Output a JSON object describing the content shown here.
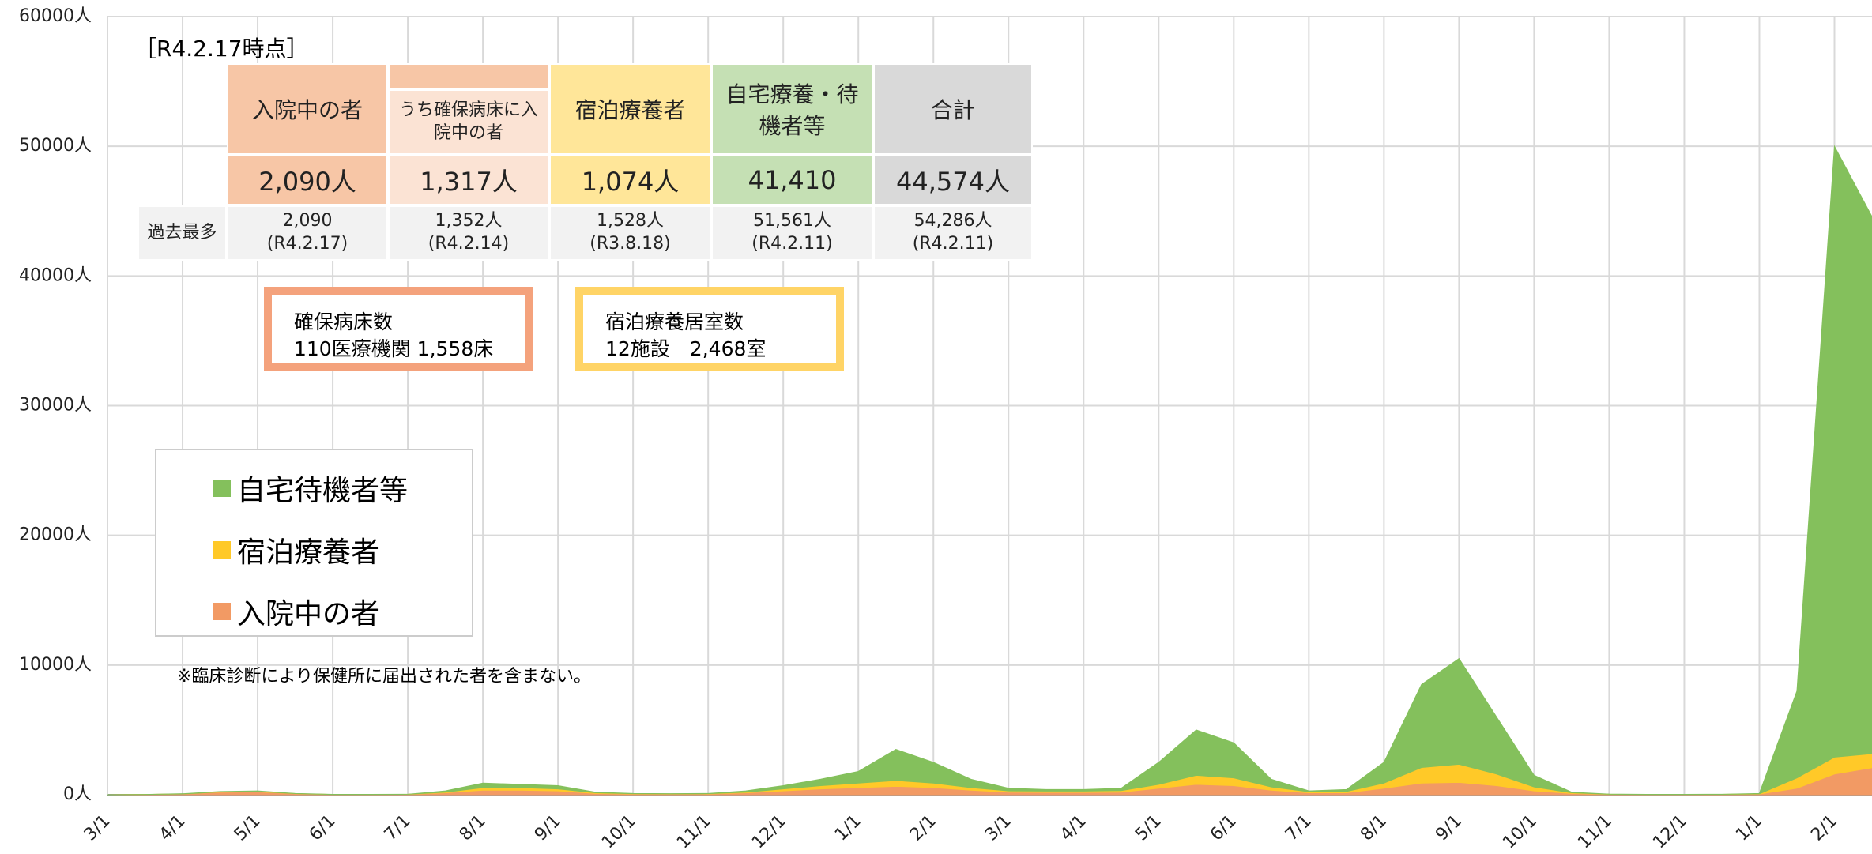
{
  "chart_data": {
    "type": "stacked_area",
    "categories": [
      "3/1",
      null,
      "4/1",
      null,
      "5/1",
      null,
      "6/1",
      null,
      "7/1",
      null,
      "8/1",
      null,
      "9/1",
      null,
      "10/1",
      null,
      "11/1",
      null,
      "12/1",
      null,
      "1/1",
      null,
      "2/1",
      null,
      "3/1",
      null,
      "4/1",
      null,
      "5/1",
      null,
      "6/1",
      null,
      "7/1",
      null,
      "8/1",
      null,
      "9/1",
      null,
      "10/1",
      null,
      "11/1",
      null,
      "12/1",
      null,
      "1/1",
      null,
      "2/1",
      null
    ],
    "series": [
      {
        "name": "入院中の者",
        "color": "#f29a64",
        "values": [
          0,
          20,
          60,
          200,
          220,
          80,
          25,
          25,
          30,
          150,
          350,
          350,
          300,
          100,
          60,
          50,
          60,
          150,
          300,
          450,
          550,
          650,
          550,
          350,
          200,
          180,
          180,
          200,
          500,
          800,
          700,
          350,
          150,
          150,
          500,
          900,
          950,
          700,
          300,
          100,
          30,
          20,
          20,
          20,
          50,
          500,
          1600,
          2090
        ]
      },
      {
        "name": "宿泊療養者",
        "color": "#ffc928",
        "values": [
          0,
          0,
          0,
          20,
          30,
          10,
          0,
          0,
          5,
          50,
          200,
          200,
          150,
          50,
          20,
          20,
          20,
          50,
          150,
          250,
          350,
          450,
          350,
          200,
          100,
          100,
          100,
          120,
          300,
          700,
          600,
          250,
          80,
          100,
          400,
          1200,
          1400,
          900,
          300,
          50,
          10,
          5,
          5,
          10,
          20,
          800,
          1300,
          1074
        ]
      },
      {
        "name": "自宅待機者等",
        "color": "#84c05c",
        "values": [
          0,
          0,
          20,
          30,
          50,
          10,
          5,
          5,
          5,
          100,
          350,
          250,
          250,
          50,
          20,
          10,
          20,
          100,
          250,
          500,
          900,
          2400,
          1600,
          650,
          200,
          120,
          120,
          180,
          1700,
          3500,
          2700,
          600,
          70,
          150,
          1600,
          6400,
          8150,
          4400,
          900,
          50,
          10,
          5,
          5,
          10,
          30,
          6700,
          47100,
          41410
        ]
      }
    ],
    "ylim": [
      0,
      60000
    ],
    "yticks": [
      {
        "value": 0,
        "label": "0人"
      },
      {
        "value": 10000,
        "label": "10000人"
      },
      {
        "value": 20000,
        "label": "20000人"
      },
      {
        "value": 30000,
        "label": "30000人"
      },
      {
        "value": 40000,
        "label": "40000人"
      },
      {
        "value": 50000,
        "label": "50000人"
      },
      {
        "value": 60000,
        "label": "60000人"
      }
    ],
    "grid": true,
    "annotations": {
      "note": "※臨床診断により保健所に届出された者を含まない。",
      "box1_title": "確保病床数",
      "box1_text": "110医療機関 1,558床",
      "box2_title": "宿泊療養居室数",
      "box2_text": "12施設　2,468室"
    }
  },
  "table": {
    "as_of": "［R4.2.17時点］",
    "max_label": "過去最多",
    "columns": [
      {
        "header": "入院中の者",
        "value": "2,090人",
        "max": "2,090",
        "max_date": "(R4.2.17)"
      },
      {
        "header": "うち確保病床に入院中の者",
        "value": "1,317人",
        "max": "1,352人",
        "max_date": "(R4.2.14)"
      },
      {
        "header": "宿泊療養者",
        "value": "1,074人",
        "max": "1,528人",
        "max_date": "(R3.8.18)"
      },
      {
        "header": "自宅療養・待機者等",
        "value": "41,410",
        "max": "51,561人",
        "max_date": "(R4.2.11)"
      },
      {
        "header": "合計",
        "value": "44,574人",
        "max": "54,286人",
        "max_date": "(R4.2.11)"
      }
    ]
  }
}
